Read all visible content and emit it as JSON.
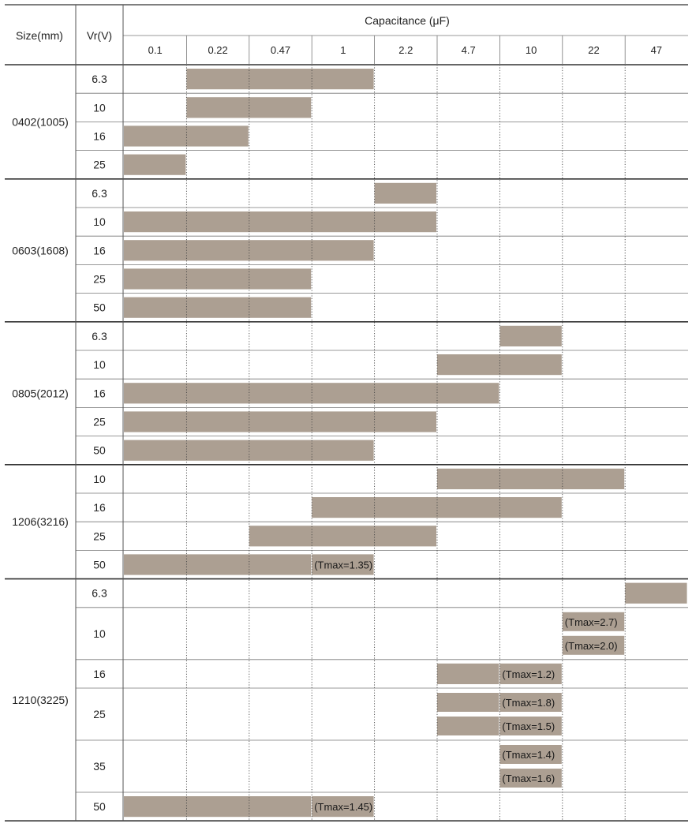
{
  "chart_data": {
    "type": "table",
    "headers": {
      "size": "Size(mm)",
      "voltage": "Vr(V)",
      "capacitance": "Capacitance (μF)"
    },
    "capacitance_columns": [
      "0.1",
      "0.22",
      "0.47",
      "1",
      "2.2",
      "4.7",
      "10",
      "22",
      "47"
    ],
    "colors": {
      "bar": "#ac9f92",
      "grid": "#555555",
      "rule": "#333333"
    },
    "groups": [
      {
        "size": "0402(1005)",
        "rows": [
          {
            "vr": "6.3",
            "bars": [
              {
                "from": "0.22",
                "to": "1"
              }
            ]
          },
          {
            "vr": "10",
            "bars": [
              {
                "from": "0.22",
                "to": "0.47"
              }
            ]
          },
          {
            "vr": "16",
            "bars": [
              {
                "from": "0.1",
                "to": "0.22"
              }
            ]
          },
          {
            "vr": "25",
            "bars": [
              {
                "from": "0.1",
                "to": "0.1"
              }
            ]
          }
        ]
      },
      {
        "size": "0603(1608)",
        "rows": [
          {
            "vr": "6.3",
            "bars": [
              {
                "from": "2.2",
                "to": "2.2"
              }
            ]
          },
          {
            "vr": "10",
            "bars": [
              {
                "from": "0.1",
                "to": "2.2"
              }
            ]
          },
          {
            "vr": "16",
            "bars": [
              {
                "from": "0.1",
                "to": "1"
              }
            ]
          },
          {
            "vr": "25",
            "bars": [
              {
                "from": "0.1",
                "to": "0.47"
              }
            ]
          },
          {
            "vr": "50",
            "bars": [
              {
                "from": "0.1",
                "to": "0.47"
              }
            ]
          }
        ]
      },
      {
        "size": "0805(2012)",
        "rows": [
          {
            "vr": "6.3",
            "bars": [
              {
                "from": "10",
                "to": "10"
              }
            ]
          },
          {
            "vr": "10",
            "bars": [
              {
                "from": "4.7",
                "to": "10"
              }
            ]
          },
          {
            "vr": "16",
            "bars": [
              {
                "from": "0.1",
                "to": "4.7"
              }
            ]
          },
          {
            "vr": "25",
            "bars": [
              {
                "from": "0.1",
                "to": "2.2"
              }
            ]
          },
          {
            "vr": "50",
            "bars": [
              {
                "from": "0.1",
                "to": "1"
              }
            ]
          }
        ]
      },
      {
        "size": "1206(3216)",
        "rows": [
          {
            "vr": "10",
            "bars": [
              {
                "from": "4.7",
                "to": "22"
              }
            ]
          },
          {
            "vr": "16",
            "bars": [
              {
                "from": "1",
                "to": "10"
              }
            ]
          },
          {
            "vr": "25",
            "bars": [
              {
                "from": "0.47",
                "to": "2.2"
              }
            ]
          },
          {
            "vr": "50",
            "bars": [
              {
                "from": "0.1",
                "to": "0.47"
              },
              {
                "from": "1",
                "to": "1",
                "note": "(Tmax=1.35)"
              }
            ]
          }
        ]
      },
      {
        "size": "1210(3225)",
        "rows": [
          {
            "vr": "6.3",
            "bars": [
              {
                "from": "47",
                "to": "47"
              }
            ]
          },
          {
            "vr": "10",
            "bars": [
              {
                "from": "22",
                "to": "22",
                "note": "(Tmax=2.7)"
              },
              {
                "from": "22",
                "to": "22",
                "note": "(Tmax=2.0)"
              }
            ]
          },
          {
            "vr": "16",
            "bars": [
              {
                "from": "4.7",
                "to": "4.7"
              },
              {
                "from": "10",
                "to": "10",
                "note": "(Tmax=1.2)"
              }
            ]
          },
          {
            "vr": "25",
            "bars": [
              {
                "from": "4.7",
                "to": "4.7"
              },
              {
                "from": "10",
                "to": "10",
                "note": "(Tmax=1.8)"
              },
              {
                "from": "4.7",
                "to": "4.7"
              },
              {
                "from": "10",
                "to": "10",
                "note": "(Tmax=1.5)"
              }
            ]
          },
          {
            "vr": "35",
            "bars": [
              {
                "from": "10",
                "to": "10",
                "note": "(Tmax=1.4)"
              },
              {
                "from": "10",
                "to": "10",
                "note": "(Tmax=1.6)"
              }
            ]
          },
          {
            "vr": "50",
            "bars": [
              {
                "from": "0.1",
                "to": "0.47"
              },
              {
                "from": "1",
                "to": "1",
                "note": "(Tmax=1.45)"
              }
            ]
          }
        ]
      }
    ]
  }
}
